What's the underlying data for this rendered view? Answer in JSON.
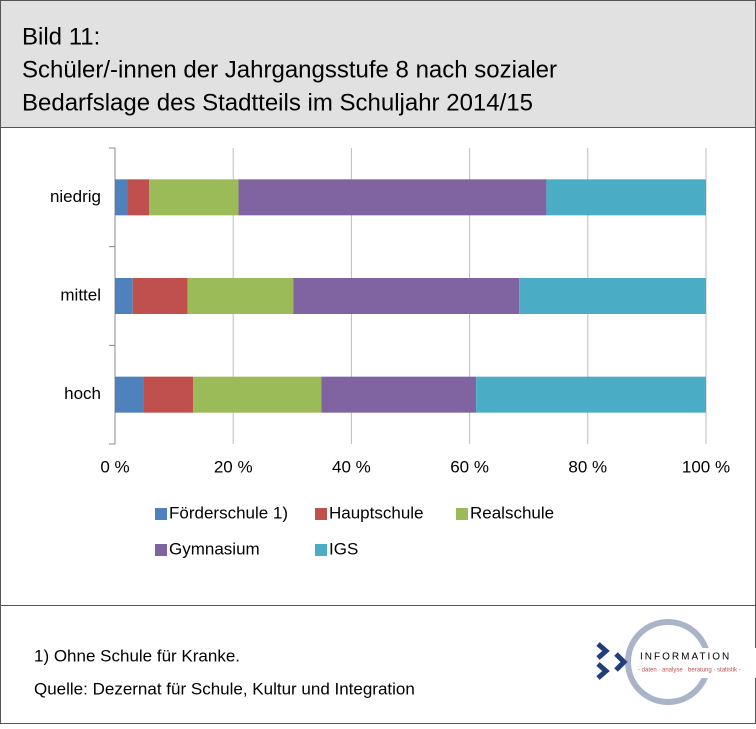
{
  "header": {
    "label": "Bild 11:",
    "title_lines": [
      "Schüler/-innen der Jahrgangsstufe 8 nach sozialer",
      "Bedarfslage des Stadtteils im Schuljahr 2014/15"
    ]
  },
  "chart_data": {
    "type": "stacked-bar-horizontal",
    "categories": [
      "niedrig",
      "mittel",
      "hoch"
    ],
    "series": [
      {
        "name": "Förderschule 1)",
        "color": "#4f81bd",
        "values": [
          2.2,
          3.0,
          4.9
        ]
      },
      {
        "name": "Hauptschule",
        "color": "#c0504d",
        "values": [
          3.6,
          9.3,
          8.3
        ]
      },
      {
        "name": "Realschule",
        "color": "#9bbb59",
        "values": [
          15.1,
          17.9,
          21.7
        ]
      },
      {
        "name": "Gymnasium",
        "color": "#8064a2",
        "values": [
          52.1,
          38.2,
          26.2
        ]
      },
      {
        "name": "IGS",
        "color": "#4bacc6",
        "values": [
          27.0,
          31.6,
          38.9
        ]
      }
    ],
    "xlim": [
      0,
      100
    ],
    "xticks": [
      {
        "value": 0,
        "label": "0 %"
      },
      {
        "value": 20,
        "label": "20 %"
      },
      {
        "value": 40,
        "label": "40 %"
      },
      {
        "value": 60,
        "label": "60 %"
      },
      {
        "value": 80,
        "label": "80 %"
      },
      {
        "value": 100,
        "label": "100 %"
      }
    ],
    "grid": true,
    "legend": "bottom"
  },
  "footer": {
    "footnote": "1) Ohne Schule für Kranke.",
    "source": "Quelle: Dezernat für Schule, Kultur und Integration"
  },
  "logo": {
    "text": "INFORMATION",
    "tagline": "- daten · analyse · beratung · statistik -"
  }
}
